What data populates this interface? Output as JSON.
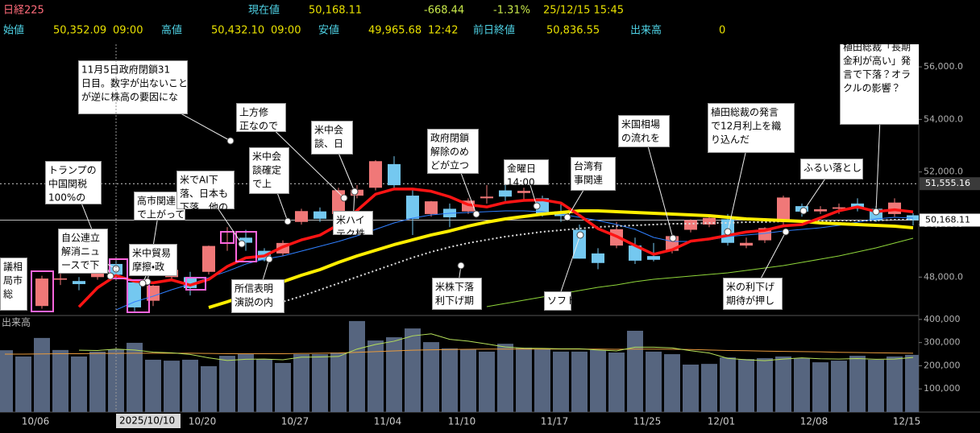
{
  "header": {
    "title": "日経225",
    "current": {
      "label": "現在値",
      "value": "50,168.11"
    },
    "change": "-668.44",
    "change_pct": "-1.31%",
    "datetime": "25/12/15 15:45",
    "open": {
      "label": "始値",
      "value": "50,352.09",
      "time": "09:00"
    },
    "high": {
      "label": "高値",
      "value": "50,432.10",
      "time": "09:00"
    },
    "low": {
      "label": "安値",
      "value": "49,965.68",
      "time": "12:42"
    },
    "prev_close": {
      "label": "前日終値",
      "value": "50,836.55"
    },
    "volume": {
      "label": "出来高",
      "value": "0"
    }
  },
  "chart_data": {
    "type": "candlestick",
    "categories": [
      null,
      null,
      "10/06",
      null,
      null,
      null,
      null,
      null,
      null,
      null,
      null,
      "10/20",
      null,
      null,
      null,
      null,
      "10/27",
      null,
      null,
      null,
      null,
      "11/04",
      null,
      null,
      null,
      "11/10",
      null,
      null,
      null,
      null,
      "11/17",
      null,
      null,
      null,
      null,
      "11/25",
      null,
      null,
      null,
      "12/01",
      null,
      null,
      null,
      null,
      "12/08",
      null,
      null,
      null,
      null,
      "12/15"
    ],
    "open": [
      44900,
      45300,
      46900,
      47900,
      47850,
      48000,
      48500,
      47800,
      47100,
      48000,
      48000,
      48200,
      49300,
      49500,
      49000,
      48900,
      50100,
      50500,
      50400,
      51100,
      51400,
      52300,
      51100,
      50400,
      50600,
      50500,
      51000,
      51300,
      51200,
      51000,
      50500,
      49800,
      48900,
      49200,
      49200,
      48800,
      49000,
      49800,
      50000,
      50200,
      49200,
      49400,
      50100,
      50700,
      50500,
      50600,
      50800,
      50600,
      50400,
      50352.09
    ],
    "high": [
      45100,
      45800,
      48050,
      48150,
      48000,
      48600,
      48700,
      47900,
      47700,
      48350,
      48200,
      49200,
      49900,
      49800,
      49100,
      49400,
      50600,
      50650,
      51400,
      51500,
      52450,
      52600,
      51300,
      50900,
      50800,
      51000,
      51500,
      51600,
      51400,
      51100,
      50800,
      50000,
      49100,
      50100,
      49500,
      49300,
      49600,
      50200,
      50300,
      50400,
      49500,
      49900,
      51100,
      50800,
      50700,
      50800,
      51000,
      50700,
      51000,
      50432.1
    ],
    "low": [
      44700,
      45200,
      46800,
      47700,
      47500,
      47900,
      48000,
      46700,
      46900,
      47900,
      47300,
      48100,
      49000,
      49000,
      48600,
      48800,
      50000,
      50100,
      50300,
      51000,
      51300,
      51400,
      49600,
      50300,
      49900,
      50400,
      50800,
      50900,
      50900,
      50300,
      50100,
      48700,
      48300,
      49100,
      48500,
      48600,
      48900,
      49700,
      49900,
      49200,
      49100,
      49300,
      50000,
      50300,
      50400,
      50400,
      50500,
      50100,
      50300,
      49965.68
    ],
    "close": [
      44936,
      45769,
      47944,
      47950,
      47734,
      48580,
      48088,
      46847,
      47672,
      48277,
      47582,
      49185,
      49316,
      49307,
      48641,
      49299,
      50512,
      50219,
      51307,
      51325,
      52411,
      51497,
      50212,
      50883,
      50276,
      50911,
      51063,
      51063,
      51281,
      50376,
      50323,
      48702,
      48537,
      49823,
      48625,
      48659,
      49559,
      50167,
      50253,
      49303,
      49303,
      49864,
      51028,
      50491,
      50581,
      50655,
      50602,
      50148,
      50836,
      50168.11
    ],
    "up_color": "#f07878",
    "down_color": "#74c8f0",
    "ylim": [
      46600,
      56860
    ],
    "yticks": [
      {
        "value": 48000,
        "label": "48,000.0"
      },
      {
        "value": 50000,
        "label": "50,000.0"
      },
      {
        "value": 52000,
        "label": "52,000.0"
      },
      {
        "value": 54000,
        "label": "54,000.0"
      },
      {
        "value": 56000,
        "label": "56,000.0"
      }
    ],
    "grid": false,
    "lines": [
      {
        "color": "#2f7fff",
        "width": 1,
        "dash": false,
        "values": [
          null,
          null,
          null,
          null,
          null,
          null,
          46752,
          47060,
          47273,
          47518,
          47732,
          47977,
          48222,
          48498,
          48682,
          48805,
          48988,
          49172,
          49356,
          49571,
          49816,
          50061,
          50245,
          50368,
          50429,
          50460,
          50490,
          50521,
          50521,
          50490,
          50398,
          50276,
          50153,
          50000,
          49816,
          49510,
          49356,
          49356,
          49418,
          49540,
          49602,
          49663,
          49755,
          49816,
          49877,
          49969,
          50092,
          50214,
          50276,
          50245
        ]
      },
      {
        "color": "#8fd63a",
        "width": 1,
        "dash": false,
        "values": [
          null,
          null,
          null,
          null,
          null,
          null,
          null,
          null,
          null,
          null,
          null,
          null,
          null,
          null,
          null,
          null,
          null,
          null,
          null,
          null,
          null,
          null,
          null,
          null,
          null,
          null,
          46875,
          46997,
          47120,
          47242,
          47365,
          47487,
          47610,
          47702,
          47824,
          47916,
          47977,
          48039,
          48100,
          48161,
          48253,
          48345,
          48437,
          48560,
          48682,
          48805,
          48958,
          49111,
          49295,
          49479
        ]
      },
      {
        "color": "#dddddd",
        "width": 2,
        "dash": true,
        "values": [
          null,
          null,
          null,
          null,
          null,
          null,
          null,
          null,
          null,
          null,
          null,
          null,
          null,
          null,
          46905,
          47060,
          47273,
          47518,
          47763,
          48008,
          48253,
          48498,
          48744,
          48958,
          49142,
          49295,
          49418,
          49540,
          49632,
          49724,
          49785,
          49847,
          49908,
          49939,
          49969,
          50000,
          50030,
          50030,
          50061,
          50061,
          50092,
          50092,
          50122,
          50122,
          50122,
          50153,
          50153,
          50153,
          50184,
          50184
        ]
      },
      {
        "color": "#ffee00",
        "width": 4,
        "dash": false,
        "values": [
          null,
          null,
          null,
          null,
          null,
          null,
          null,
          null,
          null,
          null,
          null,
          46844,
          47060,
          47305,
          47580,
          47825,
          48070,
          48284,
          48560,
          48805,
          49020,
          49234,
          49418,
          49602,
          49755,
          49939,
          50092,
          50214,
          50306,
          50398,
          50460,
          50521,
          50521,
          50490,
          50460,
          50429,
          50398,
          50368,
          50337,
          50276,
          50214,
          50184,
          50153,
          50122,
          50061,
          50030,
          50000,
          49969,
          49939,
          49877
        ]
      },
      {
        "color": "#ff1414",
        "width": 3.5,
        "dash": false,
        "values": [
          null,
          null,
          null,
          null,
          46867,
          47595,
          48059,
          47840,
          47784,
          47893,
          47693,
          47913,
          48406,
          48733,
          48806,
          49150,
          49415,
          49596,
          49996,
          50532,
          51155,
          51352,
          51350,
          51266,
          51056,
          50756,
          50669,
          50839,
          50919,
          50939,
          50821,
          50349,
          49844,
          49552,
          49202,
          48869,
          49041,
          49367,
          49453,
          49588,
          49717,
          49778,
          49950,
          49998,
          50253,
          50524,
          50671,
          50495,
          50564,
          50482
        ]
      }
    ],
    "reference_lines": [
      {
        "value": 51555.16,
        "label": "51,555.16"
      },
      {
        "value": 50168.11,
        "label": "50,168.11"
      }
    ],
    "crosshair_label": "2025/10/10",
    "annotations": [
      [
        "11月5日政府閉鎖31",
        "日目。数字が出ないこと",
        "が逆に株高の要因にな"
      ],
      [
        "上方修",
        "正なので"
      ],
      [
        "米中会",
        "談、日"
      ],
      [
        "政府閉鎖",
        "解除のめ",
        "どが立つ"
      ],
      [
        "金曜日",
        "14:00"
      ],
      [
        "台湾有",
        "事関連"
      ],
      [
        "米国相場",
        "の流れを"
      ],
      [
        "植田総裁の発言",
        "で12月利上を織",
        "り込んだ"
      ],
      [
        "植田総裁「長期",
        "金利が高い」発",
        "言で下落？オラ",
        "クルの影響？"
      ],
      [
        "ふるい落とし"
      ],
      [
        "トランプの",
        "中国関税",
        "100%の"
      ],
      [
        "自公連立",
        "解消ニュ",
        "ースで下"
      ],
      [
        "高市関連",
        "で上がって"
      ],
      [
        "米でAI下",
        "落、日本も",
        "下落　他の"
      ],
      [
        "米中貿易",
        "摩擦・政"
      ],
      [
        "米中会",
        "談確定",
        "で上"
      ],
      [
        "米ハイ",
        "テク株"
      ],
      [
        "所信表明",
        "演説の内"
      ],
      [
        "米株下落",
        "利下げ期"
      ],
      [
        "ソフト"
      ],
      [
        "米の利下げ",
        "期待が押し"
      ],
      [
        "議相",
        "局市",
        "総"
      ]
    ],
    "volume": {
      "label": "出来高",
      "color": "#56657f",
      "values": [
        267000,
        240000,
        320000,
        268000,
        240000,
        261000,
        271000,
        299000,
        226000,
        222000,
        226000,
        198000,
        243000,
        250000,
        229000,
        212000,
        250000,
        250000,
        257000,
        393000,
        309000,
        323000,
        361000,
        302000,
        275000,
        271000,
        261000,
        295000,
        278000,
        271000,
        261000,
        261000,
        268000,
        257000,
        351000,
        261000,
        250000,
        205000,
        208000,
        236000,
        229000,
        233000,
        240000,
        233000,
        215000,
        222000,
        243000,
        226000,
        240000,
        247000
      ],
      "ylim": [
        0,
        410000
      ],
      "yticks": [
        {
          "value": 100000,
          "label": "100,000"
        },
        {
          "value": 200000,
          "label": "200,000"
        },
        {
          "value": 300000,
          "label": "300,000"
        },
        {
          "value": 400000,
          "label": "400,000"
        }
      ],
      "lines": [
        {
          "color": "#e89a3c",
          "values": [
            250000,
            250000,
            251000,
            252000,
            252000,
            253000,
            253000,
            254000,
            254000,
            254000,
            254000,
            253000,
            252000,
            252000,
            252000,
            252000,
            253000,
            254000,
            255000,
            258000,
            261000,
            264000,
            267000,
            269000,
            270000,
            271000,
            272000,
            272000,
            272000,
            272000,
            272000,
            272000,
            272000,
            271000,
            272000,
            272000,
            271000,
            270000,
            268000,
            266000,
            265000,
            263000,
            262000,
            261000,
            260000,
            258000,
            257000,
            256000,
            255000,
            254000
          ]
        },
        {
          "color": "#b6e05a",
          "values": [
            null,
            null,
            null,
            null,
            267000,
            266000,
            272000,
            268000,
            259000,
            256000,
            249000,
            234000,
            223000,
            228000,
            229000,
            226000,
            237000,
            238000,
            240000,
            272000,
            292000,
            306000,
            329000,
            338000,
            314000,
            306000,
            294000,
            281000,
            276000,
            275000,
            273000,
            273000,
            268000,
            264000,
            280000,
            280000,
            277000,
            265000,
            255000,
            232000,
            226000,
            222000,
            229000,
            234000,
            230000,
            229000,
            231000,
            228000,
            229000,
            236000
          ]
        }
      ]
    }
  }
}
